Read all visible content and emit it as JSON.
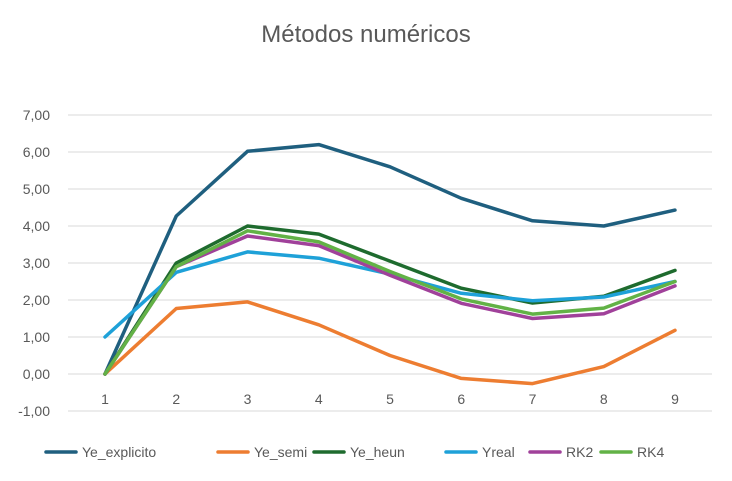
{
  "chart_data": {
    "type": "line",
    "title": "Métodos numéricos",
    "xlabel": "",
    "ylabel": "",
    "categories": [
      "1",
      "2",
      "3",
      "4",
      "5",
      "6",
      "7",
      "8",
      "9"
    ],
    "ylim": [
      -1,
      7
    ],
    "yticks": [
      "-1,00",
      "0,00",
      "1,00",
      "2,00",
      "3,00",
      "4,00",
      "5,00",
      "6,00",
      "7,00"
    ],
    "grid": true,
    "legend_position": "bottom",
    "series": [
      {
        "name": "Ye_explicito",
        "color": "#1f5f7f",
        "values": [
          0.0,
          4.27,
          6.02,
          6.2,
          5.6,
          4.75,
          4.14,
          4.0,
          4.43
        ]
      },
      {
        "name": "Ye_semi",
        "color": "#ed7d31",
        "values": [
          0.0,
          1.77,
          1.95,
          1.33,
          0.5,
          -0.12,
          -0.26,
          0.2,
          1.18
        ]
      },
      {
        "name": "Ye_heun",
        "color": "#1e6b2e",
        "values": [
          0.0,
          3.0,
          4.0,
          3.78,
          3.05,
          2.32,
          1.92,
          2.1,
          2.8
        ]
      },
      {
        "name": "Yreal",
        "color": "#1ea1d8",
        "values": [
          1.0,
          2.75,
          3.3,
          3.13,
          2.7,
          2.18,
          1.98,
          2.08,
          2.5
        ]
      },
      {
        "name": "RK2",
        "color": "#a0419a",
        "values": [
          0.0,
          2.9,
          3.73,
          3.47,
          2.67,
          1.91,
          1.5,
          1.63,
          2.38
        ]
      },
      {
        "name": "RK4",
        "color": "#62b246",
        "values": [
          0.0,
          2.9,
          3.87,
          3.57,
          2.77,
          2.03,
          1.62,
          1.78,
          2.5
        ]
      }
    ]
  }
}
